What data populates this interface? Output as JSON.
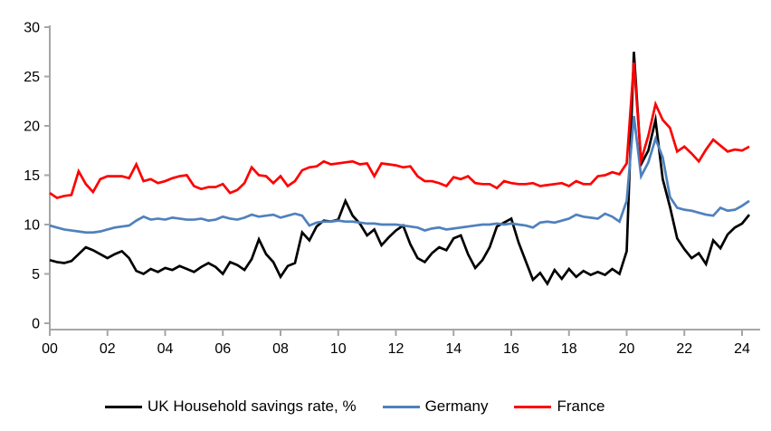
{
  "chart_data": {
    "type": "line",
    "title": "",
    "xlabel": "",
    "ylabel": "",
    "x_unit": "year (quarterly points)",
    "x_start_year": 2000,
    "x_end_year": 2024.25,
    "x_quarter_step": 0.25,
    "x_tick_labels": [
      "00",
      "02",
      "04",
      "06",
      "08",
      "10",
      "12",
      "14",
      "16",
      "18",
      "20",
      "22",
      "24"
    ],
    "y_ticks": [
      0,
      5,
      10,
      15,
      20,
      25,
      30
    ],
    "ylim": [
      0,
      30
    ],
    "grid": "off",
    "legend_position": "bottom",
    "axis_color": "#a6a6a6",
    "series": [
      {
        "name": "UK Household savings rate, %",
        "color": "#000000",
        "values": [
          6.4,
          6.2,
          6.1,
          6.3,
          7.0,
          7.7,
          7.4,
          7.0,
          6.6,
          7.0,
          7.3,
          6.6,
          5.3,
          5.0,
          5.5,
          5.2,
          5.6,
          5.4,
          5.8,
          5.5,
          5.2,
          5.7,
          6.1,
          5.7,
          5.0,
          6.2,
          5.9,
          5.4,
          6.5,
          8.5,
          7.0,
          6.2,
          4.7,
          5.8,
          6.1,
          9.2,
          8.4,
          9.8,
          10.4,
          10.3,
          10.5,
          12.4,
          10.9,
          10.1,
          8.9,
          9.5,
          7.9,
          8.7,
          9.4,
          9.9,
          8.0,
          6.6,
          6.2,
          7.1,
          7.7,
          7.4,
          8.6,
          8.9,
          7.0,
          5.6,
          6.4,
          7.7,
          9.8,
          10.2,
          10.6,
          8.2,
          6.3,
          4.4,
          5.1,
          4.0,
          5.4,
          4.5,
          5.5,
          4.7,
          5.3,
          4.9,
          5.2,
          4.9,
          5.5,
          5.0,
          7.3,
          27.5,
          16.1,
          17.5,
          20.6,
          14.6,
          11.8,
          8.6,
          7.5,
          6.6,
          7.1,
          6.0,
          8.4,
          7.6,
          9.0,
          9.7,
          10.1,
          11.0
        ]
      },
      {
        "name": "Germany",
        "color": "#4f81bd",
        "values": [
          9.9,
          9.7,
          9.5,
          9.4,
          9.3,
          9.2,
          9.2,
          9.3,
          9.5,
          9.7,
          9.8,
          9.9,
          10.4,
          10.8,
          10.5,
          10.6,
          10.5,
          10.7,
          10.6,
          10.5,
          10.5,
          10.6,
          10.4,
          10.5,
          10.8,
          10.6,
          10.5,
          10.7,
          11.0,
          10.8,
          10.9,
          11.0,
          10.7,
          10.9,
          11.1,
          10.9,
          9.9,
          10.2,
          10.3,
          10.3,
          10.4,
          10.3,
          10.3,
          10.2,
          10.1,
          10.1,
          10.0,
          10.0,
          10.0,
          9.9,
          9.8,
          9.7,
          9.4,
          9.6,
          9.7,
          9.5,
          9.6,
          9.7,
          9.8,
          9.9,
          10.0,
          10.0,
          10.1,
          10.0,
          10.1,
          10.0,
          9.9,
          9.7,
          10.2,
          10.3,
          10.2,
          10.4,
          10.6,
          11.0,
          10.8,
          10.7,
          10.6,
          11.1,
          10.8,
          10.3,
          12.4,
          21.0,
          14.9,
          16.3,
          18.7,
          16.8,
          12.8,
          11.7,
          11.5,
          11.4,
          11.2,
          11.0,
          10.9,
          11.7,
          11.4,
          11.5,
          11.9,
          12.4
        ]
      },
      {
        "name": "France",
        "color": "#ff0000",
        "values": [
          13.2,
          12.7,
          12.9,
          13.0,
          15.4,
          14.1,
          13.3,
          14.6,
          14.9,
          14.9,
          14.9,
          14.7,
          16.1,
          14.4,
          14.6,
          14.2,
          14.4,
          14.7,
          14.9,
          15.0,
          13.9,
          13.6,
          13.8,
          13.8,
          14.1,
          13.2,
          13.5,
          14.2,
          15.8,
          15.0,
          14.9,
          14.2,
          14.9,
          13.9,
          14.4,
          15.5,
          15.8,
          15.9,
          16.4,
          16.1,
          16.2,
          16.3,
          16.4,
          16.1,
          16.2,
          14.9,
          16.2,
          16.1,
          16.0,
          15.8,
          15.9,
          14.9,
          14.4,
          14.4,
          14.2,
          13.9,
          14.8,
          14.6,
          14.9,
          14.2,
          14.1,
          14.1,
          13.7,
          14.4,
          14.2,
          14.1,
          14.1,
          14.2,
          13.9,
          14.0,
          14.1,
          14.2,
          13.9,
          14.4,
          14.1,
          14.1,
          14.9,
          15.0,
          15.3,
          15.1,
          16.2,
          26.4,
          16.5,
          19.0,
          22.2,
          20.6,
          19.8,
          17.4,
          17.9,
          17.2,
          16.4,
          17.6,
          18.6,
          18.0,
          17.4,
          17.6,
          17.5,
          17.9
        ]
      }
    ]
  }
}
